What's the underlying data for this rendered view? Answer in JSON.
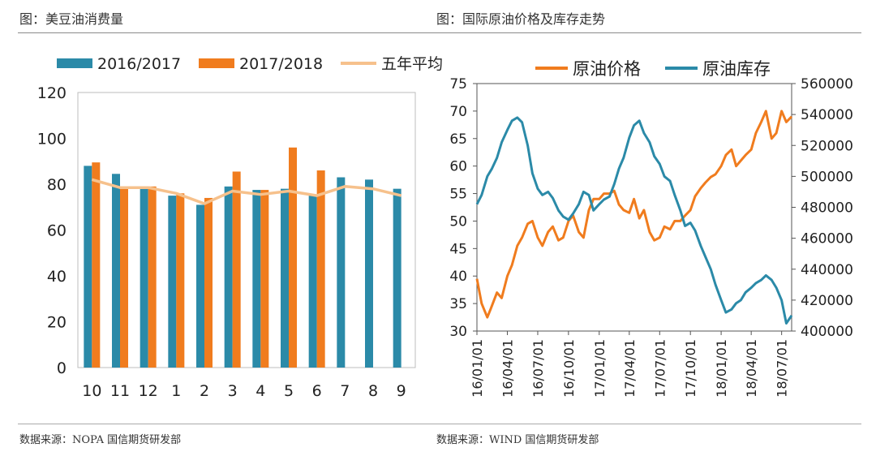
{
  "left": {
    "header": "图：美豆油消费量",
    "source": "数据来源：NOPA 国信期货研发部",
    "chart_data": {
      "type": "bar",
      "title": "",
      "categories": [
        "10",
        "11",
        "12",
        "1",
        "2",
        "3",
        "4",
        "5",
        "6",
        "7",
        "8",
        "9"
      ],
      "series": [
        {
          "name": "2016/2017",
          "kind": "bar",
          "color": "#2b8aa8",
          "values": [
            88,
            84.5,
            79,
            75,
            71,
            79,
            77.5,
            78,
            75,
            83,
            82,
            78
          ]
        },
        {
          "name": "2017/2018",
          "kind": "bar",
          "color": "#f07c1e",
          "values": [
            89.5,
            79,
            79,
            76,
            74,
            85.5,
            77.5,
            96,
            86,
            null,
            null,
            null
          ]
        },
        {
          "name": "五年平均",
          "kind": "line",
          "color": "#f6c18c",
          "values": [
            82,
            78.5,
            78.5,
            76,
            71.5,
            77,
            75.5,
            77,
            75,
            79,
            78,
            75
          ]
        }
      ],
      "ylim": [
        0,
        120
      ],
      "yticks": [
        "0",
        "20",
        "40",
        "60",
        "80",
        "100",
        "120"
      ],
      "legend_position": "top",
      "grid": false
    }
  },
  "right": {
    "header": "图：国际原油价格及库存走势",
    "source": "数据来源：WIND 国信期货研发部",
    "chart_data": {
      "type": "line",
      "title": "",
      "x_ticks": [
        "16/01/01",
        "16/04/01",
        "16/07/01",
        "16/10/01",
        "17/01/01",
        "17/04/01",
        "17/07/01",
        "17/10/01",
        "18/01/01",
        "18/04/01",
        "18/07/01"
      ],
      "x_range": [
        "2016-01-01",
        "2018-07-31"
      ],
      "series": [
        {
          "name": "原油价格",
          "axis": "left",
          "color": "#f07c1e",
          "x": [
            "2016-01-01",
            "2016-01-15",
            "2016-02-01",
            "2016-02-11",
            "2016-03-01",
            "2016-03-15",
            "2016-04-01",
            "2016-04-15",
            "2016-05-01",
            "2016-05-15",
            "2016-06-01",
            "2016-06-15",
            "2016-07-01",
            "2016-07-15",
            "2016-08-01",
            "2016-08-15",
            "2016-09-01",
            "2016-09-15",
            "2016-10-01",
            "2016-10-15",
            "2016-11-01",
            "2016-11-15",
            "2016-12-01",
            "2016-12-15",
            "2017-01-01",
            "2017-01-15",
            "2017-02-01",
            "2017-02-15",
            "2017-03-01",
            "2017-03-15",
            "2017-04-01",
            "2017-04-15",
            "2017-05-01",
            "2017-05-15",
            "2017-06-01",
            "2017-06-15",
            "2017-07-01",
            "2017-07-15",
            "2017-08-01",
            "2017-08-15",
            "2017-09-01",
            "2017-09-15",
            "2017-10-01",
            "2017-10-15",
            "2017-11-01",
            "2017-11-15",
            "2017-12-01",
            "2017-12-15",
            "2018-01-01",
            "2018-01-15",
            "2018-02-01",
            "2018-02-15",
            "2018-03-01",
            "2018-03-15",
            "2018-04-01",
            "2018-04-15",
            "2018-05-01",
            "2018-05-15",
            "2018-06-01",
            "2018-06-15",
            "2018-07-01",
            "2018-07-15",
            "2018-07-31"
          ],
          "values": [
            39.5,
            35,
            32.5,
            34,
            37,
            36,
            40,
            42,
            45.5,
            47,
            49.5,
            50,
            47,
            45.5,
            48,
            49,
            46.5,
            47,
            50,
            51,
            48,
            47,
            52,
            54,
            54,
            55,
            55,
            55.5,
            53,
            52,
            51.5,
            54,
            50.5,
            52,
            48,
            46.5,
            47,
            49,
            48.5,
            50,
            50,
            51,
            52,
            54.5,
            56,
            57,
            58,
            58.5,
            60,
            62,
            63,
            60,
            61,
            62,
            63,
            66,
            68,
            70,
            65,
            66,
            70,
            68,
            69
          ]
        },
        {
          "name": "原油库存",
          "axis": "right",
          "color": "#2b8aa8",
          "x": [
            "2016-01-01",
            "2016-01-15",
            "2016-02-01",
            "2016-02-15",
            "2016-03-01",
            "2016-03-15",
            "2016-04-01",
            "2016-04-15",
            "2016-05-01",
            "2016-05-15",
            "2016-06-01",
            "2016-06-15",
            "2016-07-01",
            "2016-07-15",
            "2016-08-01",
            "2016-08-15",
            "2016-09-01",
            "2016-09-15",
            "2016-10-01",
            "2016-10-15",
            "2016-11-01",
            "2016-11-15",
            "2016-12-01",
            "2016-12-15",
            "2017-01-01",
            "2017-01-15",
            "2017-02-01",
            "2017-02-15",
            "2017-03-01",
            "2017-03-15",
            "2017-04-01",
            "2017-04-15",
            "2017-05-01",
            "2017-05-15",
            "2017-06-01",
            "2017-06-15",
            "2017-07-01",
            "2017-07-15",
            "2017-08-01",
            "2017-08-15",
            "2017-09-01",
            "2017-09-15",
            "2017-10-01",
            "2017-10-15",
            "2017-11-01",
            "2017-11-15",
            "2017-12-01",
            "2017-12-15",
            "2018-01-01",
            "2018-01-15",
            "2018-02-01",
            "2018-02-15",
            "2018-03-01",
            "2018-03-15",
            "2018-04-01",
            "2018-04-15",
            "2018-05-01",
            "2018-05-15",
            "2018-06-01",
            "2018-06-15",
            "2018-07-01",
            "2018-07-15",
            "2018-07-31"
          ],
          "values": [
            482000,
            488000,
            500000,
            505000,
            512000,
            522000,
            530000,
            536000,
            538000,
            535000,
            520000,
            502000,
            492000,
            488000,
            490000,
            486000,
            478000,
            474000,
            472000,
            476000,
            482000,
            490000,
            488000,
            478000,
            482000,
            485000,
            487000,
            495000,
            505000,
            512000,
            525000,
            533000,
            536000,
            528000,
            522000,
            513000,
            508000,
            500000,
            497000,
            488000,
            478000,
            468000,
            470000,
            465000,
            455000,
            448000,
            440000,
            430000,
            420000,
            412000,
            414000,
            418000,
            420000,
            425000,
            428000,
            431000,
            433000,
            436000,
            433000,
            428000,
            420000,
            405000,
            410000
          ]
        }
      ],
      "y_left": {
        "range": [
          30,
          75
        ],
        "ticks": [
          "30",
          "35",
          "40",
          "45",
          "50",
          "55",
          "60",
          "65",
          "70",
          "75"
        ]
      },
      "y_right": {
        "range": [
          400000,
          560000
        ],
        "ticks": [
          "400000",
          "420000",
          "440000",
          "460000",
          "480000",
          "500000",
          "520000",
          "540000",
          "560000"
        ]
      },
      "legend_position": "top",
      "grid": false
    }
  }
}
